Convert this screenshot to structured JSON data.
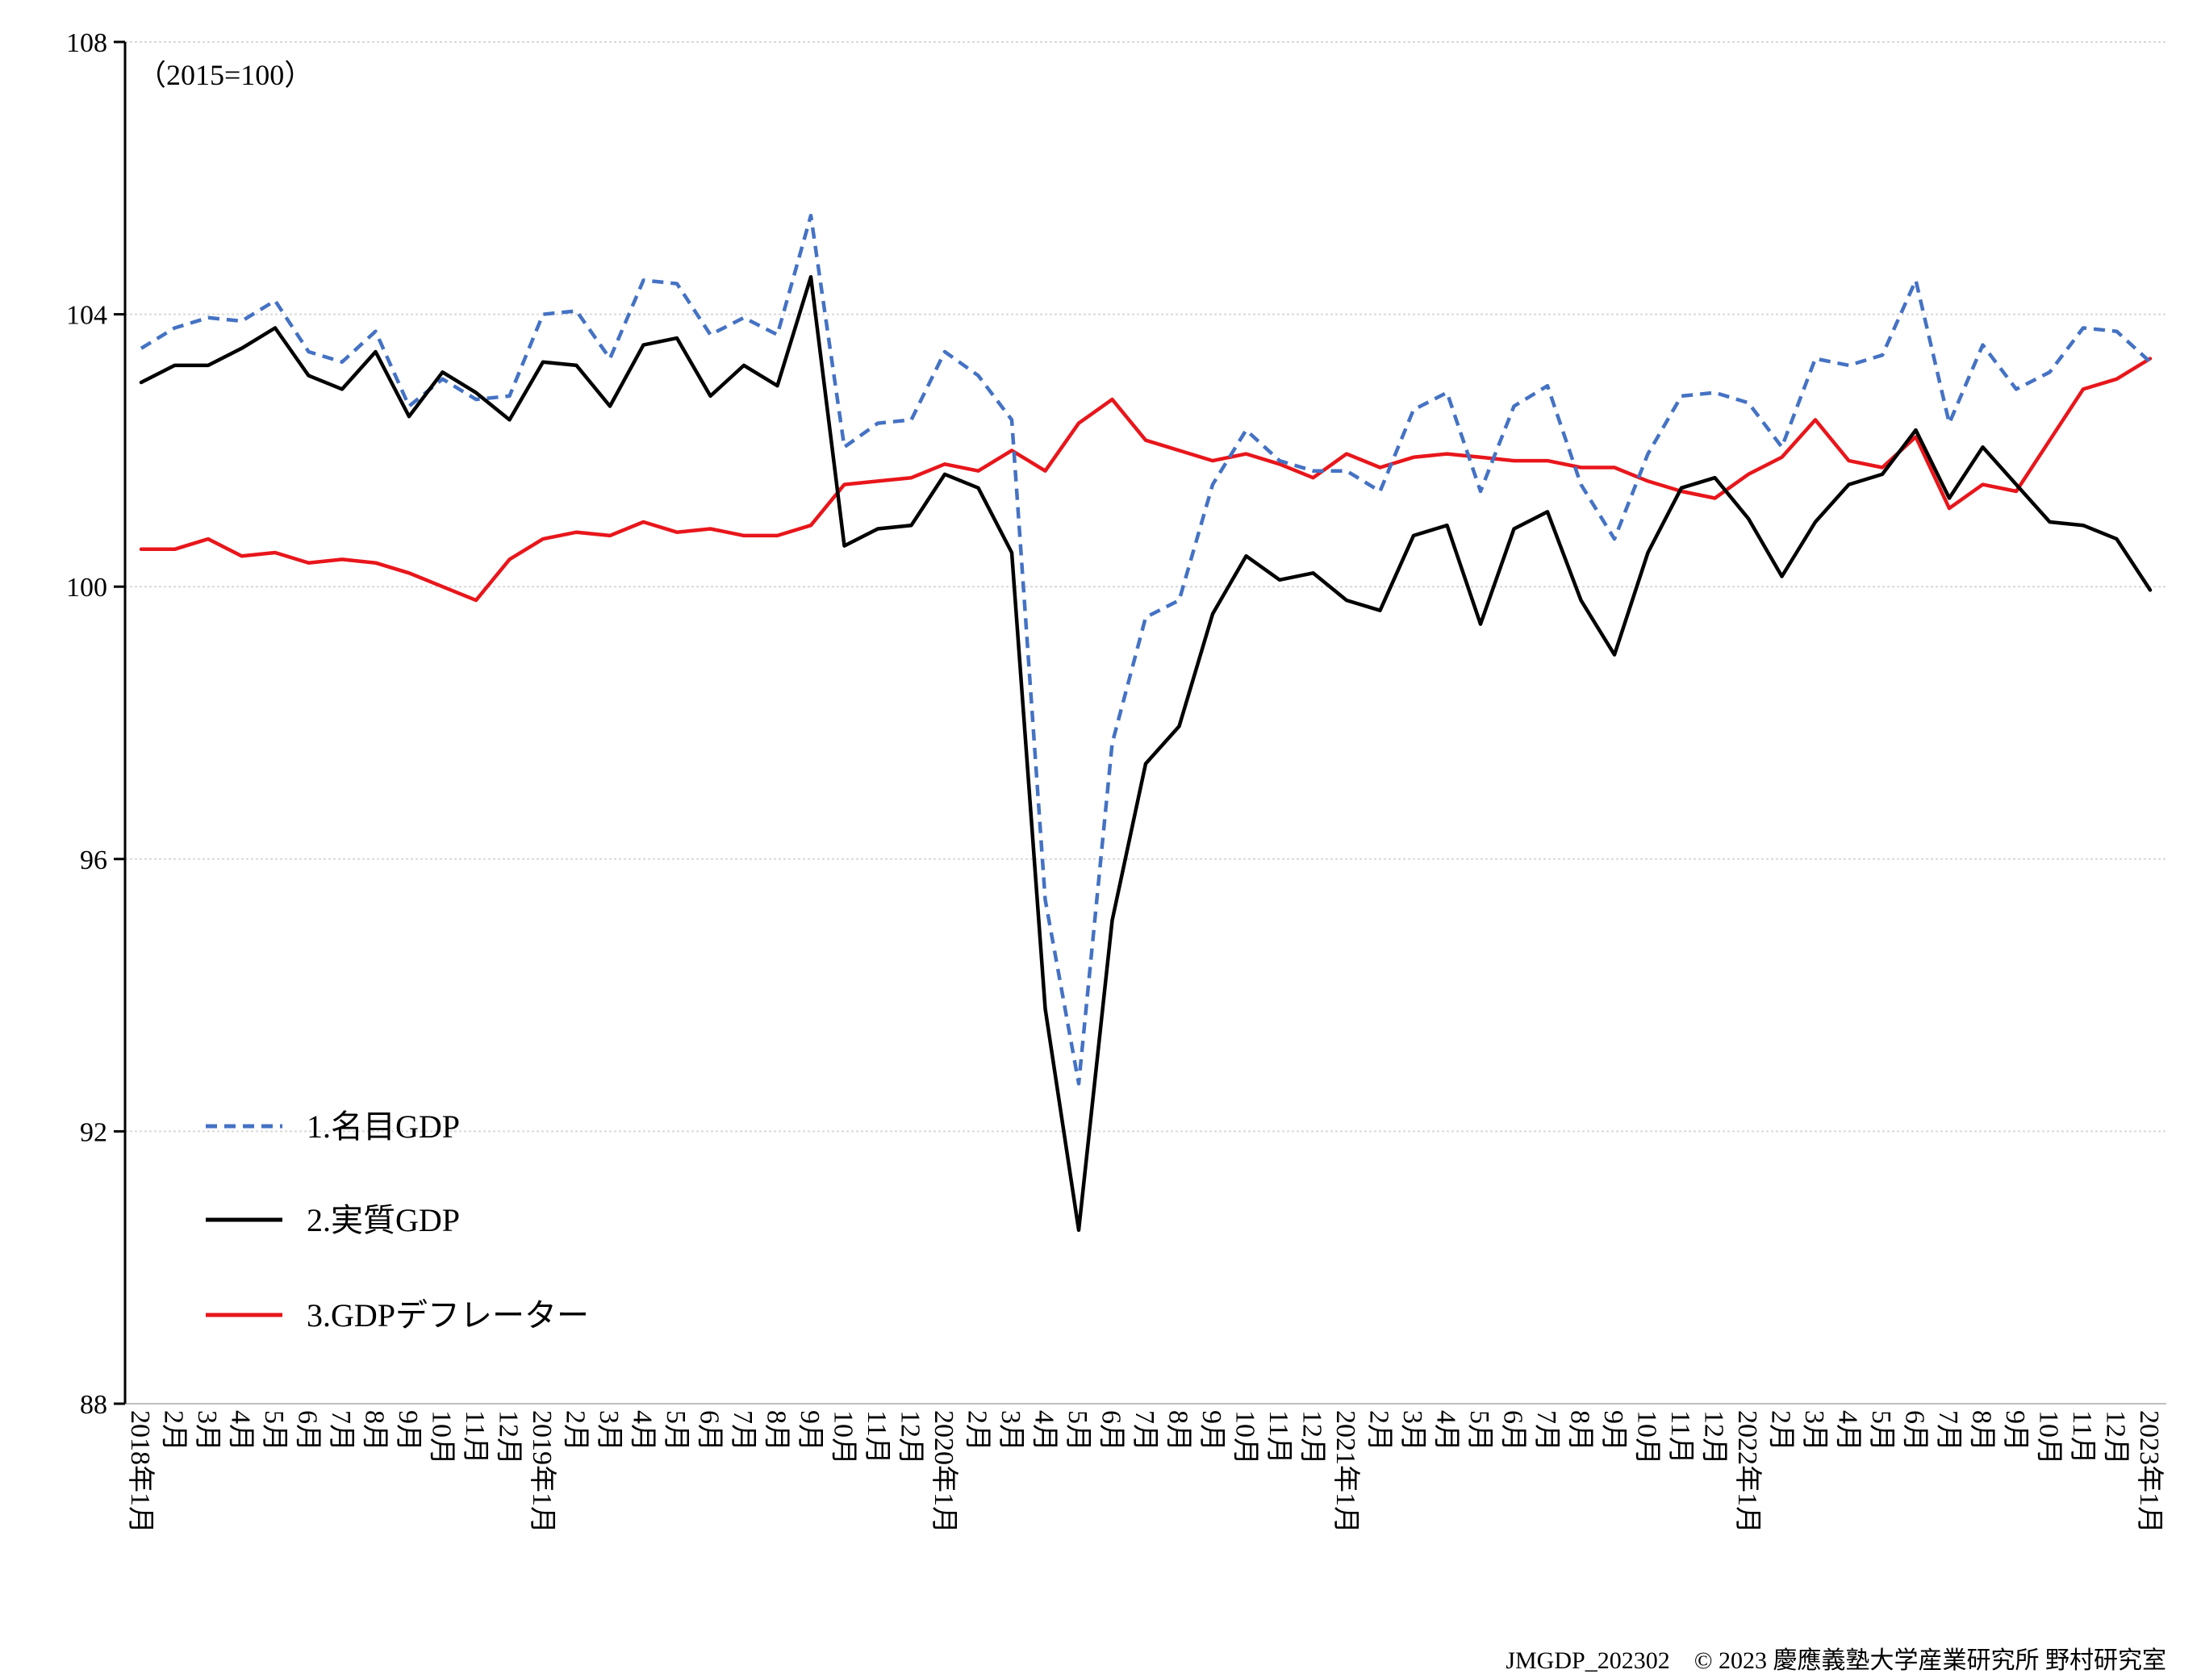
{
  "chart_data": {
    "type": "line",
    "unit_label": "（2015=100）",
    "ylim": [
      88,
      108
    ],
    "yticks": [
      88,
      92,
      96,
      100,
      104,
      108
    ],
    "grid": "horizontal",
    "legend_position": "bottom-left",
    "categories": [
      "2018年1月",
      "2月",
      "3月",
      "4月",
      "5月",
      "6月",
      "7月",
      "8月",
      "9月",
      "10月",
      "11月",
      "12月",
      "2019年1月",
      "2月",
      "3月",
      "4月",
      "5月",
      "6月",
      "7月",
      "8月",
      "9月",
      "10月",
      "11月",
      "12月",
      "2020年1月",
      "2月",
      "3月",
      "4月",
      "5月",
      "6月",
      "7月",
      "8月",
      "9月",
      "10月",
      "11月",
      "12月",
      "2021年1月",
      "2月",
      "3月",
      "4月",
      "5月",
      "6月",
      "7月",
      "8月",
      "9月",
      "10月",
      "11月",
      "12月",
      "2022年1月",
      "2月",
      "3月",
      "4月",
      "5月",
      "6月",
      "7月",
      "8月",
      "9月",
      "10月",
      "11月",
      "12月",
      "2023年1月"
    ],
    "series": [
      {
        "name": "1.名目GDP",
        "color": "#4472C4",
        "dash": "dashed",
        "values": [
          103.5,
          103.8,
          103.95,
          103.9,
          104.2,
          103.45,
          103.3,
          103.75,
          102.65,
          103.05,
          102.75,
          102.8,
          104.0,
          104.05,
          103.35,
          104.5,
          104.45,
          103.7,
          103.95,
          103.7,
          105.45,
          102.05,
          102.4,
          102.45,
          103.45,
          103.1,
          102.45,
          95.4,
          92.7,
          97.7,
          99.55,
          99.8,
          101.5,
          102.3,
          101.85,
          101.7,
          101.7,
          101.4,
          102.6,
          102.85,
          101.4,
          102.65,
          102.95,
          101.5,
          100.7,
          101.95,
          102.8,
          102.85,
          102.7,
          102.05,
          103.35,
          103.25,
          103.4,
          104.5,
          102.4,
          103.55,
          102.9,
          103.15,
          103.8,
          103.75,
          103.3
        ]
      },
      {
        "name": "2.実質GDP",
        "color": "#000000",
        "dash": "solid",
        "values": [
          103.0,
          103.25,
          103.25,
          103.5,
          103.8,
          103.1,
          102.9,
          103.45,
          102.5,
          103.15,
          102.85,
          102.45,
          103.3,
          103.25,
          102.65,
          103.55,
          103.65,
          102.8,
          103.25,
          102.95,
          104.55,
          100.6,
          100.85,
          100.9,
          101.65,
          101.45,
          100.5,
          93.8,
          90.55,
          95.1,
          97.4,
          97.95,
          99.6,
          100.45,
          100.1,
          100.2,
          99.8,
          99.65,
          100.75,
          100.9,
          99.45,
          100.85,
          101.1,
          99.8,
          99.0,
          100.5,
          101.45,
          101.6,
          101.0,
          100.15,
          100.95,
          101.5,
          101.65,
          102.3,
          101.3,
          102.05,
          101.5,
          100.95,
          100.9,
          100.7,
          99.95
        ]
      },
      {
        "name": "3.GDPデフレーター",
        "color": "#E8161B",
        "dash": "solid",
        "values": [
          100.55,
          100.55,
          100.7,
          100.45,
          100.5,
          100.35,
          100.4,
          100.35,
          100.2,
          100.0,
          99.8,
          100.4,
          100.7,
          100.8,
          100.75,
          100.95,
          100.8,
          100.85,
          100.75,
          100.75,
          100.9,
          101.5,
          101.55,
          101.6,
          101.8,
          101.7,
          102.0,
          101.7,
          102.4,
          102.75,
          102.15,
          102.0,
          101.85,
          101.95,
          101.8,
          101.6,
          101.95,
          101.75,
          101.9,
          101.95,
          101.9,
          101.85,
          101.85,
          101.75,
          101.75,
          101.55,
          101.4,
          101.3,
          101.65,
          101.9,
          102.45,
          101.85,
          101.75,
          102.2,
          101.15,
          101.5,
          101.4,
          102.15,
          102.9,
          103.05,
          103.35
        ]
      }
    ],
    "footer": "JMGDP_202302　© 2023 慶應義塾大学産業研究所 野村研究室"
  }
}
